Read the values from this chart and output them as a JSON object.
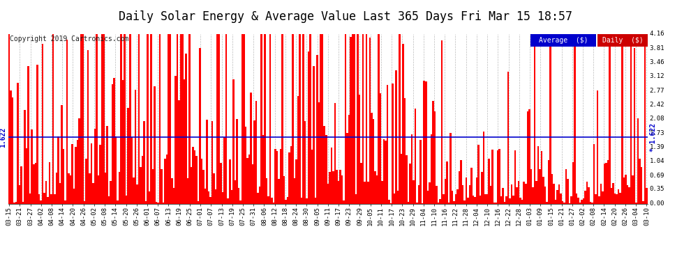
{
  "title": "Daily Solar Energy & Average Value Last 365 Days Fri Mar 15 18:57",
  "copyright": "Copyright 2019 Cartronics.com",
  "average_value": 1.622,
  "ymax": 4.16,
  "ymin": 0.0,
  "yticks": [
    0.0,
    0.35,
    0.69,
    1.04,
    1.39,
    1.73,
    2.08,
    2.42,
    2.77,
    3.12,
    3.46,
    3.81,
    4.16
  ],
  "bar_color": "#ff0000",
  "average_line_color": "#0000cc",
  "background_color": "#ffffff",
  "grid_color": "#aaaaaa",
  "legend_avg_bg": "#0000cc",
  "legend_daily_bg": "#cc0000",
  "legend_text_color": "#ffffff",
  "title_color": "#000000",
  "avg_label": "Average  ($)",
  "daily_label": "Daily  ($)",
  "num_bars": 365,
  "x_tick_labels": [
    "03-15",
    "03-21",
    "03-27",
    "04-02",
    "04-08",
    "04-14",
    "04-20",
    "04-26",
    "05-02",
    "05-08",
    "05-14",
    "05-20",
    "05-26",
    "06-01",
    "06-07",
    "06-13",
    "06-19",
    "06-25",
    "07-01",
    "07-07",
    "07-13",
    "07-19",
    "07-25",
    "07-31",
    "08-06",
    "08-12",
    "08-18",
    "08-24",
    "08-30",
    "09-05",
    "09-11",
    "09-17",
    "09-23",
    "09-29",
    "10-05",
    "10-11",
    "10-17",
    "10-23",
    "10-29",
    "11-04",
    "11-10",
    "11-16",
    "11-22",
    "11-28",
    "12-04",
    "12-10",
    "12-16",
    "12-22",
    "12-28",
    "01-03",
    "01-09",
    "01-15",
    "01-21",
    "01-27",
    "02-02",
    "02-08",
    "02-14",
    "02-20",
    "02-26",
    "03-04",
    "03-10"
  ],
  "title_fontsize": 12,
  "tick_fontsize": 6.5,
  "copyright_fontsize": 7,
  "avg_label_fontsize": 7
}
